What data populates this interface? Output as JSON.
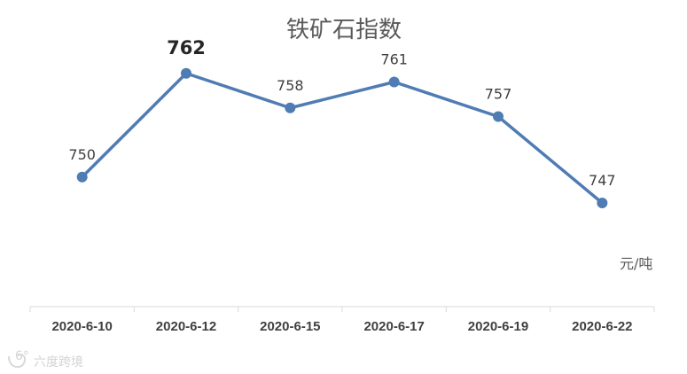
{
  "chart_data": {
    "type": "line",
    "title": "铁矿石指数",
    "unit": "元/吨",
    "categories": [
      "2020-6-10",
      "2020-6-12",
      "2020-6-15",
      "2020-6-17",
      "2020-6-19",
      "2020-6-22"
    ],
    "series": [
      {
        "values": [
          750,
          762,
          758,
          761,
          757,
          747
        ],
        "color": "#4f7cb3"
      }
    ],
    "data_labels": [
      "750",
      "762",
      "758",
      "761",
      "757",
      "747"
    ],
    "emphasized_label_index": 1,
    "ylim": [
      735,
      767
    ],
    "grid": false,
    "legend": "none",
    "marker": "circle"
  },
  "watermark": {
    "text": "六度跨境",
    "logo": "6du-logo"
  }
}
